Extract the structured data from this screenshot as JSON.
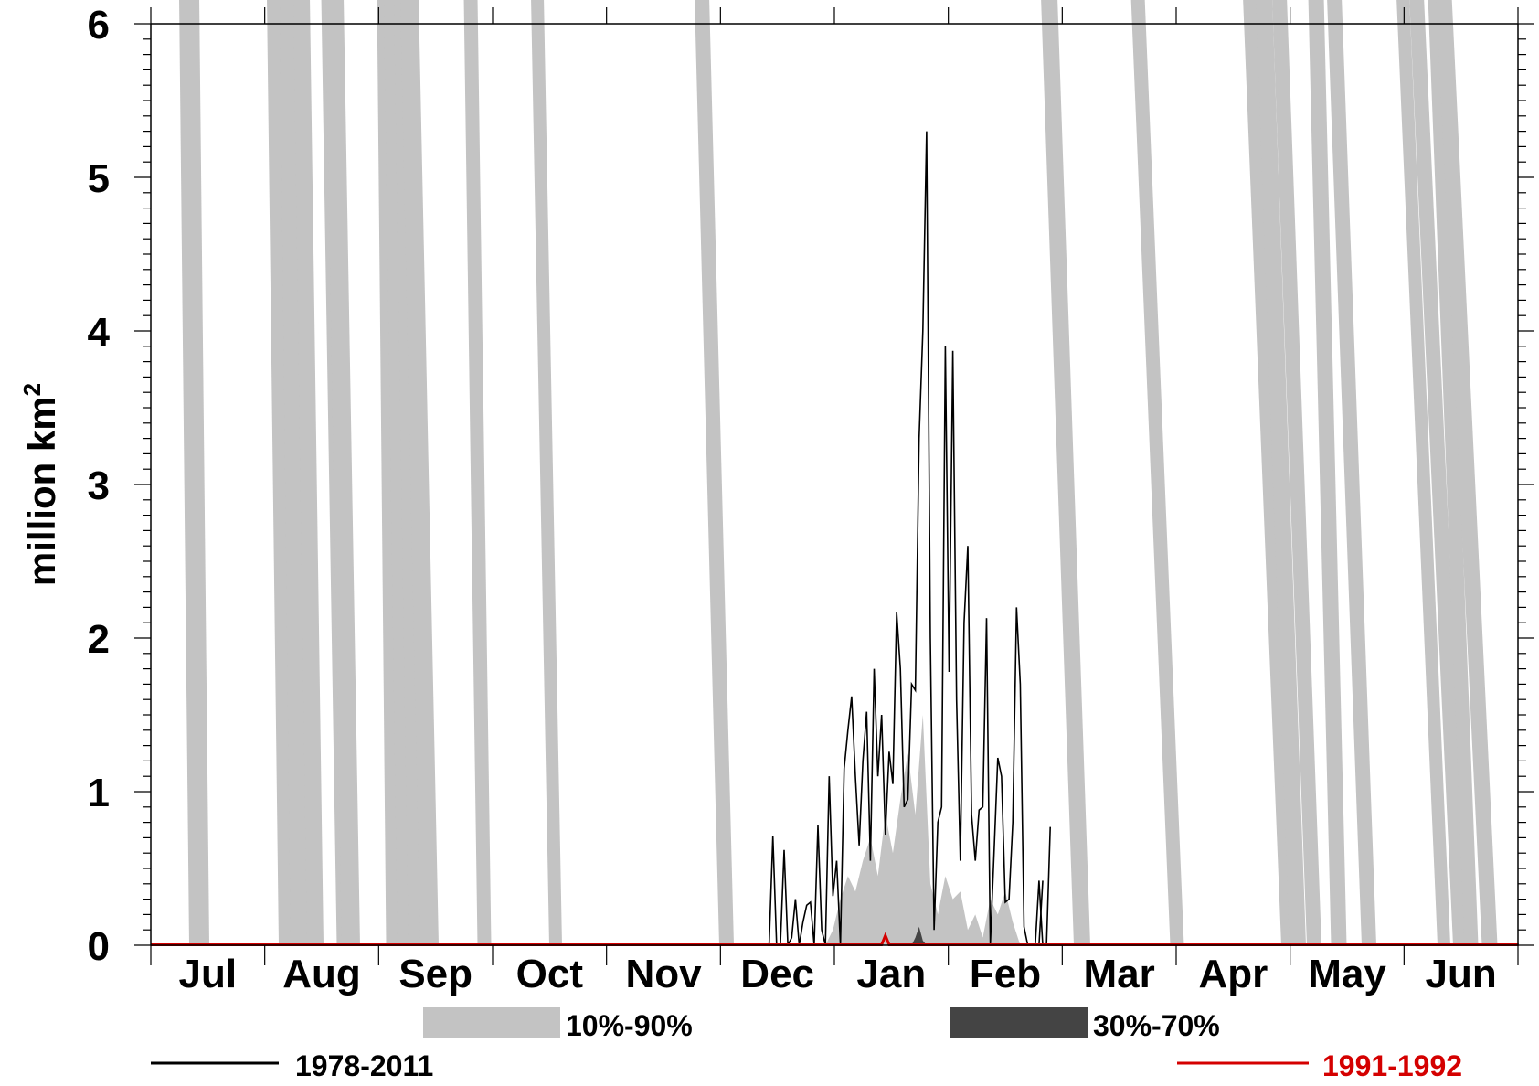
{
  "chart_data": {
    "type": "area",
    "title": "",
    "xlabel": "",
    "ylabel": "million km",
    "ylabel_superscript": "2",
    "ylim": [
      0,
      6
    ],
    "yticks": [
      "0",
      "1",
      "2",
      "3",
      "4",
      "5",
      "6"
    ],
    "months": [
      "Jul",
      "Aug",
      "Sep",
      "Oct",
      "Nov",
      "Dec",
      "Jan",
      "Feb",
      "Mar",
      "Apr",
      "May",
      "Jun"
    ],
    "grid": false,
    "legend_placement": "bottom",
    "colors": {
      "band_10_90": "#c3c3c3",
      "band_30_70": "#444444",
      "line_1978_2011": "#000000",
      "line_1991_1992": "#d40000"
    },
    "legend": {
      "band_10_90": "10%-90%",
      "band_30_70": "30%-70%",
      "line_1978_2011": "1978-2011",
      "line_1991_1992": "1991-1992"
    },
    "series_1978_2011": {
      "name": "1978-2011",
      "x_day": [
        165,
        166,
        167,
        168,
        169,
        170,
        171,
        172,
        173,
        174,
        175,
        176,
        177,
        178,
        179,
        180,
        181,
        182,
        183,
        184,
        185,
        186,
        187,
        188,
        189,
        190,
        191,
        192,
        193,
        194,
        195,
        196,
        197,
        198,
        199,
        200,
        201,
        202,
        203,
        204,
        205,
        206,
        207,
        208,
        209,
        210,
        211,
        212,
        213,
        214,
        215,
        216,
        217,
        218,
        219,
        220,
        221,
        222,
        223,
        224,
        225,
        226,
        227,
        228,
        229,
        230,
        231,
        232,
        233,
        234,
        235,
        236,
        237,
        238
      ],
      "y": [
        0,
        0.71,
        0,
        0,
        0.62,
        0,
        0.05,
        0.3,
        0,
        0.15,
        0.26,
        0.28,
        0,
        0.78,
        0.1,
        0,
        1.1,
        0.32,
        0.55,
        0,
        1.15,
        1.4,
        1.62,
        1.1,
        0.65,
        1.2,
        1.52,
        0.55,
        1.8,
        1.1,
        1.5,
        0.72,
        1.26,
        1.05,
        2.17,
        1.8,
        0.9,
        0.95,
        1.7,
        1.66,
        3.3,
        4.0,
        5.3,
        2.0,
        0.1,
        0.8,
        0.9,
        3.9,
        1.78,
        3.87,
        1.6,
        0.55,
        2.1,
        2.6,
        0.85,
        0.55,
        0.88,
        0.9,
        2.13,
        0,
        0.6,
        1.22,
        1.1,
        0.28,
        0.3,
        0.8,
        2.2,
        1.7,
        0.12,
        0,
        0,
        0,
        0,
        0.42
      ]
    },
    "series_1978_2011_tail": {
      "x_day": [
        236,
        237,
        238,
        239,
        240
      ],
      "y": [
        0,
        0.42,
        0,
        0,
        0.77
      ]
    },
    "band_10_90": {
      "x_day": [
        172,
        174,
        176,
        178,
        180,
        182,
        184,
        186,
        188,
        190,
        192,
        194,
        196,
        198,
        200,
        202,
        204,
        206,
        208,
        210,
        212,
        214,
        216,
        218,
        220,
        222,
        224,
        226,
        228,
        230,
        232,
        234,
        236
      ],
      "upper": [
        0,
        0,
        0,
        0,
        0,
        0.1,
        0.3,
        0.45,
        0.35,
        0.55,
        0.7,
        0.45,
        0.85,
        0.6,
        0.95,
        1.25,
        0.85,
        1.5,
        0.4,
        0.2,
        0.45,
        0.3,
        0.35,
        0.1,
        0.2,
        0.05,
        0.3,
        0.2,
        0.35,
        0.15,
        0,
        0,
        0
      ]
    },
    "band_30_70": {
      "x_day": [
        203,
        204,
        205,
        206,
        207
      ],
      "upper": [
        0,
        0.05,
        0.12,
        0.03,
        0
      ]
    },
    "series_1991_1992": {
      "name": "1991-1992",
      "x_day": [
        0,
        195,
        196,
        197,
        365
      ],
      "y": [
        0,
        0,
        0.06,
        0,
        0
      ]
    }
  }
}
